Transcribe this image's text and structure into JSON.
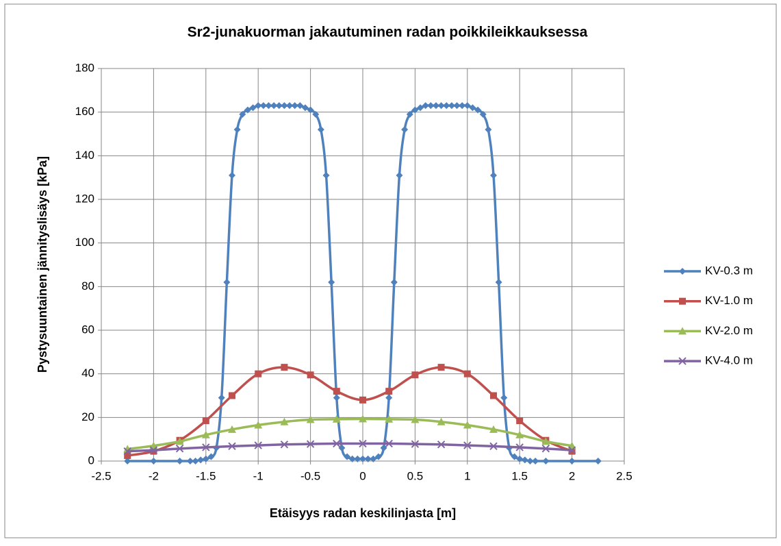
{
  "chart_data": {
    "type": "line",
    "title": "Sr2-junakuorman jakautuminen radan poikkileikkauksessa",
    "x_label": "Etäisyys radan keskilinjasta [m]",
    "y_label": "Pystysuuntainen jännityslisäys [kPa]",
    "xlim": [
      -2.5,
      2.5
    ],
    "xticks": [
      -2.5,
      -2,
      -1.5,
      -1,
      -0.5,
      0,
      0.5,
      1,
      1.5,
      2,
      2.5
    ],
    "ylim": [
      0,
      180
    ],
    "yticks": [
      0,
      20,
      40,
      60,
      80,
      100,
      120,
      140,
      160,
      180
    ],
    "grid": true,
    "legend": "right",
    "series": [
      {
        "name": "KV-0.3 m",
        "color": "#4f81bd",
        "marker": "diamond",
        "x": [
          -2.25,
          -2,
          -1.75,
          -1.65,
          -1.6,
          -1.55,
          -1.5,
          -1.45,
          -1.4,
          -1.35,
          -1.3,
          -1.25,
          -1.2,
          -1.15,
          -1.1,
          -1.05,
          -1,
          -0.95,
          -0.9,
          -0.85,
          -0.8,
          -0.75,
          -0.7,
          -0.65,
          -0.6,
          -0.55,
          -0.5,
          -0.45,
          -0.4,
          -0.35,
          -0.3,
          -0.25,
          -0.2,
          -0.15,
          -0.1,
          -0.05,
          0,
          0.05,
          0.1,
          0.15,
          0.2,
          0.25,
          0.3,
          0.35,
          0.4,
          0.45,
          0.5,
          0.55,
          0.6,
          0.65,
          0.7,
          0.75,
          0.8,
          0.85,
          0.9,
          0.95,
          1,
          1.05,
          1.1,
          1.15,
          1.2,
          1.25,
          1.3,
          1.35,
          1.4,
          1.45,
          1.5,
          1.55,
          1.6,
          1.65,
          1.75,
          2,
          2.25
        ],
        "values": [
          0,
          0,
          0,
          0,
          0,
          0.5,
          1,
          2,
          6,
          29,
          82,
          131,
          152,
          159,
          161,
          162,
          163,
          163,
          163,
          163,
          163,
          163,
          163,
          163,
          163,
          162,
          161,
          159,
          152,
          131,
          82,
          29,
          6,
          2,
          1,
          1,
          1,
          1,
          1,
          2,
          6,
          29,
          82,
          131,
          152,
          159,
          161,
          162,
          163,
          163,
          163,
          163,
          163,
          163,
          163,
          163,
          163,
          162,
          161,
          159,
          152,
          131,
          82,
          29,
          6,
          2,
          1,
          0.5,
          0,
          0,
          0,
          0,
          0
        ]
      },
      {
        "name": "KV-1.0 m",
        "color": "#c0504d",
        "marker": "square",
        "x": [
          -2.25,
          -2,
          -1.75,
          -1.5,
          -1.25,
          -1,
          -0.75,
          -0.5,
          -0.25,
          0,
          0.25,
          0.5,
          0.75,
          1,
          1.25,
          1.5,
          1.75,
          2
        ],
        "values": [
          2.5,
          4.5,
          9.5,
          18.5,
          30,
          40,
          43,
          39.5,
          32,
          28,
          32,
          39.5,
          43,
          40,
          30,
          18.5,
          9.5,
          4.5
        ]
      },
      {
        "name": "KV-2.0 m",
        "color": "#9bbb59",
        "marker": "triangle",
        "x": [
          -2.25,
          -2,
          -1.75,
          -1.5,
          -1.25,
          -1,
          -0.75,
          -0.5,
          -0.25,
          0,
          0.25,
          0.5,
          0.75,
          1,
          1.25,
          1.5,
          1.75,
          2
        ],
        "values": [
          5.5,
          7,
          9,
          12,
          14.5,
          16.5,
          18,
          19,
          19.2,
          19.3,
          19.2,
          19,
          18,
          16.5,
          14.5,
          12,
          9,
          7
        ]
      },
      {
        "name": "KV-4.0 m",
        "color": "#8064a2",
        "marker": "x",
        "x": [
          -2.25,
          -2,
          -1.75,
          -1.5,
          -1.25,
          -1,
          -0.75,
          -0.5,
          -0.25,
          0,
          0.25,
          0.5,
          0.75,
          1,
          1.25,
          1.5,
          1.75,
          2
        ],
        "values": [
          4.5,
          5,
          5.7,
          6.3,
          6.8,
          7.2,
          7.6,
          7.8,
          8,
          8,
          8,
          7.8,
          7.6,
          7.2,
          6.8,
          6.3,
          5.7,
          5
        ]
      }
    ]
  }
}
